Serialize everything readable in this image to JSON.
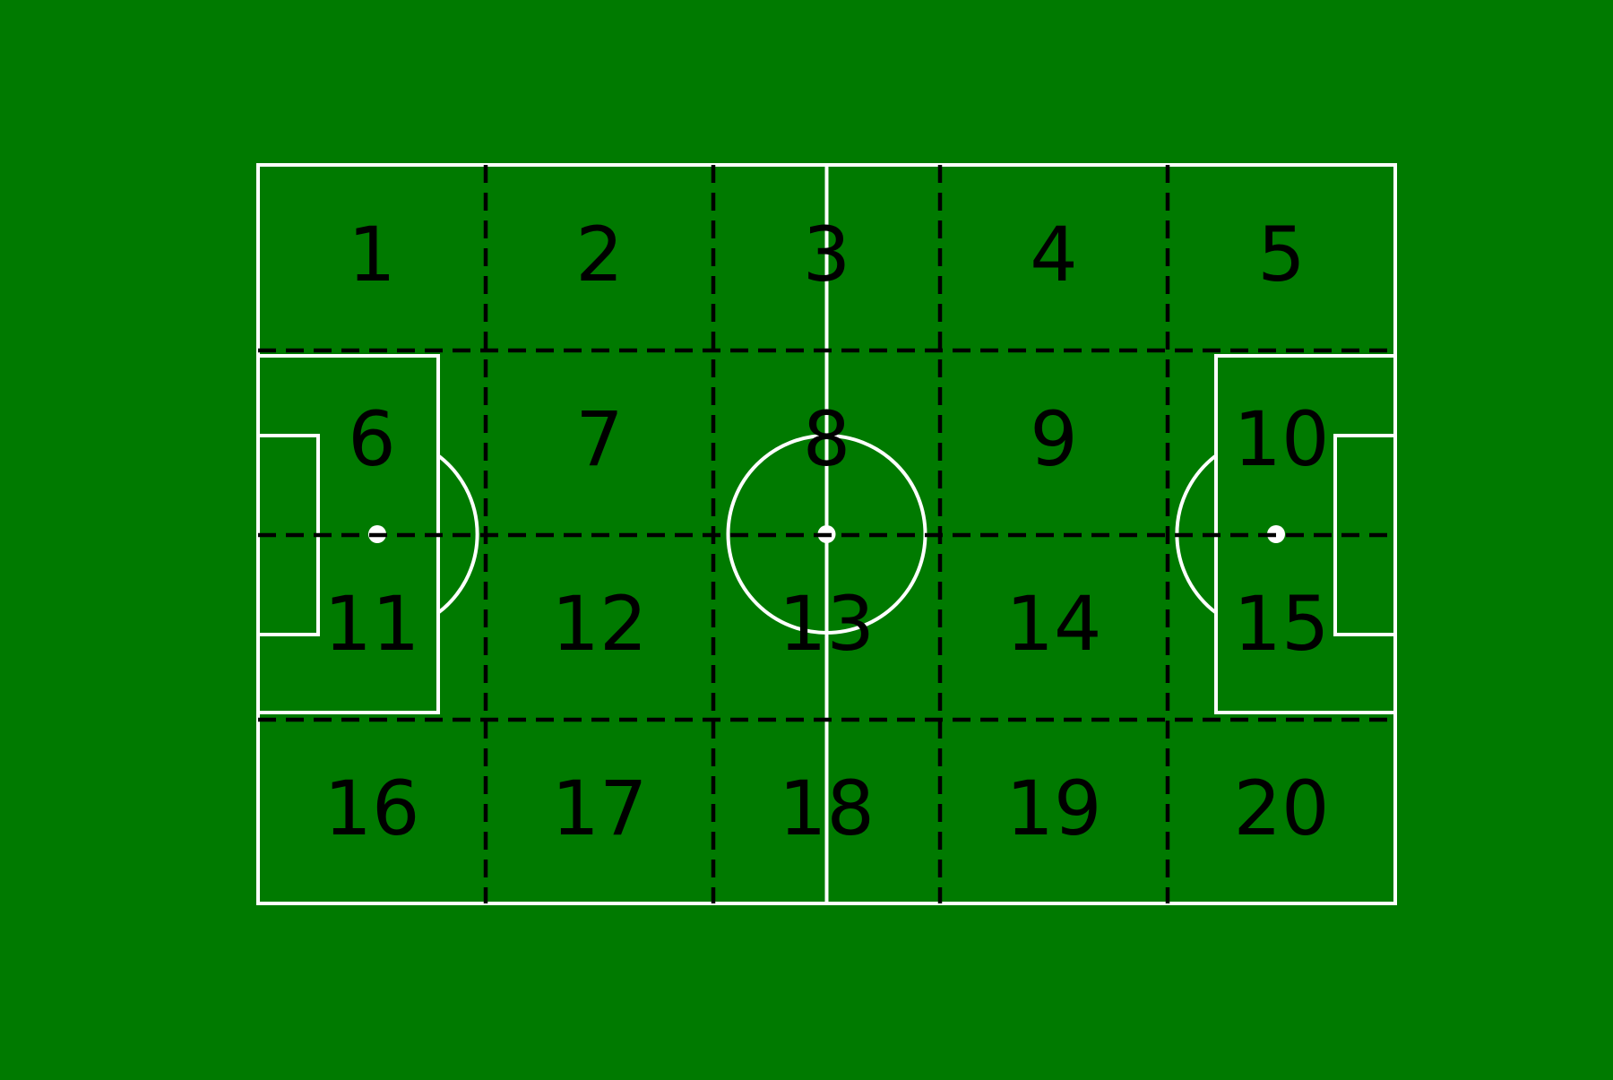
{
  "colors": {
    "background": "#007a00",
    "pitch_lines": "#ffffff",
    "zone_lines": "#000000",
    "zone_labels": "#000000"
  },
  "zone_grid": {
    "columns": 5,
    "rows": 4,
    "labels": [
      "1",
      "2",
      "3",
      "4",
      "5",
      "6",
      "7",
      "8",
      "9",
      "10",
      "11",
      "12",
      "13",
      "14",
      "15",
      "16",
      "17",
      "18",
      "19",
      "20"
    ]
  }
}
